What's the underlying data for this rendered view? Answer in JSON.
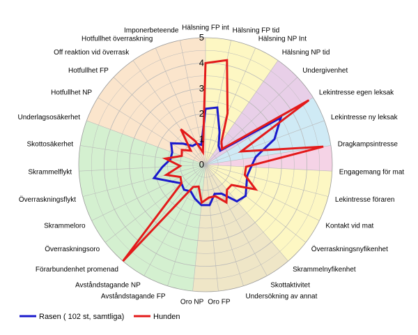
{
  "chart_data": {
    "type": "radar",
    "axes": [
      "Hälsning FP int",
      "Hälsning FP tid",
      "Hälsning NP Int",
      "Hälsning NP tid",
      "Undergivenhet",
      "Lekintresse egen leksak",
      "Lekintresse ny leksak",
      "Dragkampsintresse",
      "Engagemang för mat",
      "Lekintresse föraren",
      "Kontakt vid mat",
      "Överraskningsnyfikenhet",
      "Skrammelnyfikenhet",
      "Skottaktivitet",
      "Undersökning av annat",
      "Oro FP",
      "Oro NP",
      "Avståndstagande FP",
      "Avståndstagande NP",
      "Förarbundenhet promenad",
      "Överraskningsoro",
      "Skrammeloro",
      "Överraskningsflykt",
      "Skrammelflykt",
      "Skottosäkerhet",
      "Underlagsosäkerhet",
      "Hotfullhet NP",
      "Hotfullhet FP",
      "Off reaktion vid överrask",
      "Hotfullhet överraskning",
      "Imponerbeteende"
    ],
    "rmin": 0,
    "rmax": 5,
    "ticks": [
      "0",
      "1",
      "2",
      "3",
      "4",
      "5"
    ],
    "grid": true,
    "legend_position": "bottom-left",
    "sectors": [
      {
        "from": 0,
        "to": 3,
        "color": "#fdf7c3"
      },
      {
        "from": 3,
        "to": 5,
        "color": "#e8cfe8"
      },
      {
        "from": 5,
        "to": 7,
        "color": "#cfeaf5"
      },
      {
        "from": 7,
        "to": 8,
        "color": "#f5d3e6"
      },
      {
        "from": 8,
        "to": 12,
        "color": "#fdf7c3"
      },
      {
        "from": 12,
        "to": 16,
        "color": "#efe6c7"
      },
      {
        "from": 16,
        "to": 25,
        "color": "#d4f0d0"
      },
      {
        "from": 25,
        "to": 31,
        "color": "#fbe5cc"
      }
    ],
    "series": [
      {
        "name": "Rasen ( 102 st, samtliga)",
        "color": "#1a1acc",
        "values": [
          2.2,
          2.3,
          1.4,
          0.9,
          0.8,
          3.5,
          2.9,
          2.0,
          1.8,
          1.7,
          1.8,
          2.0,
          1.9,
          1.3,
          1.2,
          1.6,
          1.6,
          1.4,
          1.2,
          1.3,
          1.2,
          1.5,
          2.1,
          1.7,
          1.4,
          1.4,
          1.6,
          1.2,
          0.9,
          0.9,
          0.8
        ]
      },
      {
        "name": "Hunden",
        "color": "#e31a1a",
        "values": [
          4.0,
          4.2,
          2.2,
          1.1,
          0.9,
          4.8,
          1.5,
          4.7,
          1.6,
          1.6,
          2.2,
          1.3,
          1.3,
          1.7,
          1.3,
          1.3,
          1.5,
          0.9,
          1.0,
          5.0,
          1.2,
          1.1,
          1.6,
          1.0,
          1.6,
          1.0,
          1.1,
          0.8,
          1.7,
          1.0,
          0.5
        ]
      }
    ]
  }
}
